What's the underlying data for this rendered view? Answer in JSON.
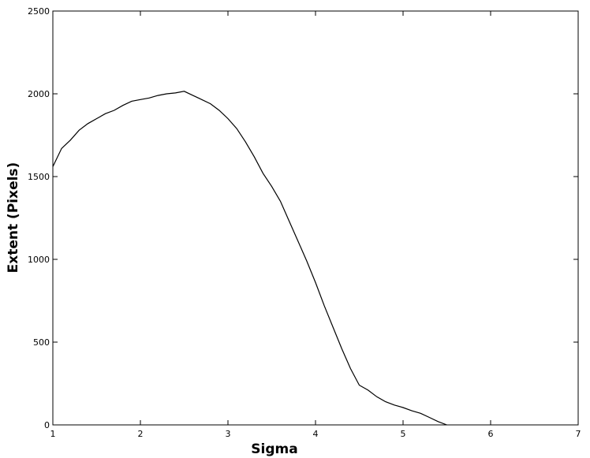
{
  "chart_data": {
    "type": "line",
    "title": "",
    "xlabel": "Sigma",
    "ylabel": "Extent (Pixels)",
    "xlim": [
      1,
      7
    ],
    "ylim": [
      0,
      2500
    ],
    "xticks": [
      1,
      2,
      3,
      4,
      5,
      6,
      7
    ],
    "yticks": [
      0,
      500,
      1000,
      1500,
      2000,
      2500
    ],
    "grid": false,
    "legend": "none",
    "line_color": "#000000",
    "series": [
      {
        "x": [
          1.0,
          1.1,
          1.2,
          1.3,
          1.4,
          1.5,
          1.6,
          1.7,
          1.8,
          1.9,
          2.0,
          2.1,
          2.2,
          2.3,
          2.4,
          2.5,
          2.6,
          2.7,
          2.8,
          2.9,
          3.0,
          3.1,
          3.2,
          3.3,
          3.4,
          3.5,
          3.6,
          3.7,
          3.8,
          3.9,
          4.0,
          4.1,
          4.2,
          4.3,
          4.4,
          4.5,
          4.6,
          4.7,
          4.8,
          4.9,
          5.0,
          5.1,
          5.2,
          5.3,
          5.4,
          5.5
        ],
        "y": [
          1560,
          1670,
          1720,
          1780,
          1820,
          1850,
          1880,
          1900,
          1930,
          1955,
          1965,
          1975,
          1990,
          2000,
          2005,
          2015,
          1990,
          1965,
          1940,
          1900,
          1850,
          1790,
          1710,
          1620,
          1520,
          1440,
          1350,
          1230,
          1110,
          990,
          860,
          720,
          590,
          460,
          340,
          240,
          210,
          170,
          140,
          120,
          105,
          85,
          70,
          45,
          20,
          0
        ]
      }
    ]
  }
}
